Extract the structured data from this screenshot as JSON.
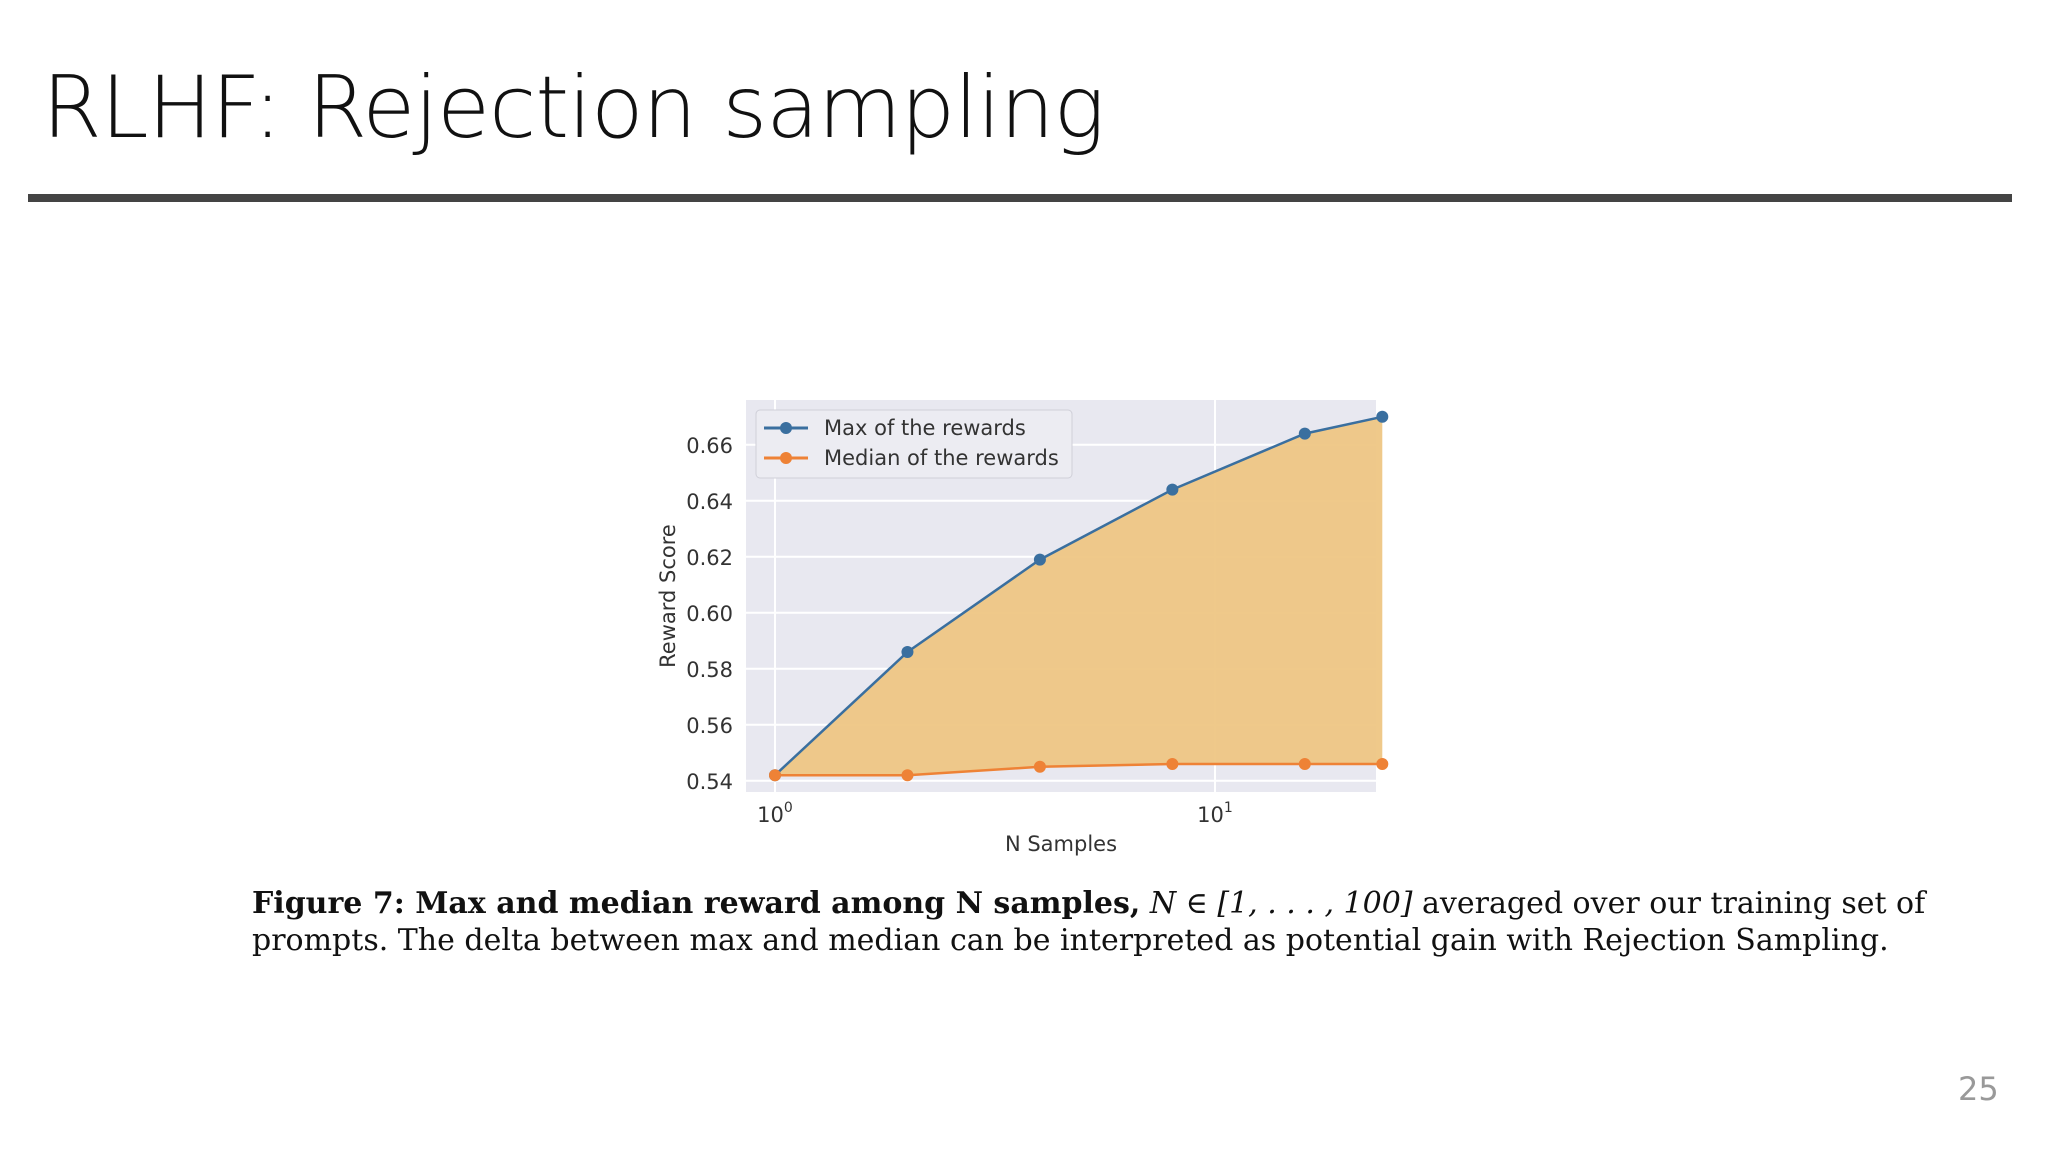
{
  "slide": {
    "title": "RLHF: Rejection sampling",
    "page_number": "25"
  },
  "caption": {
    "label": "Figure 7: Max and median reward among N samples,",
    "math": "N ∈ [1, . . . , 100]",
    "rest1": "averaged over our training set of",
    "line2": "prompts. The delta between max and median can be interpreted as potential gain with Rejection Sampling."
  },
  "colors": {
    "max": "#3a6f9f",
    "median": "#ee8236",
    "fill": "#eec684",
    "plot_bg": "#e8e8f0"
  },
  "chart_data": {
    "type": "line",
    "xlabel": "N Samples",
    "ylabel": "Reward Score",
    "x_scale": "log",
    "x": [
      1,
      2,
      4,
      8,
      16,
      24
    ],
    "x_ticks": [
      {
        "value": 1,
        "base": "10",
        "exp": "0"
      },
      {
        "value": 10,
        "base": "10",
        "exp": "1"
      }
    ],
    "y_ticks": [
      "0.54",
      "0.56",
      "0.58",
      "0.60",
      "0.62",
      "0.64",
      "0.66"
    ],
    "ylim": [
      0.536,
      0.676
    ],
    "series": [
      {
        "name": "Max of the rewards",
        "values": [
          0.542,
          0.586,
          0.619,
          0.644,
          0.664,
          0.67
        ]
      },
      {
        "name": "Median of the rewards",
        "values": [
          0.542,
          0.542,
          0.545,
          0.546,
          0.546,
          0.546
        ]
      }
    ],
    "fill_between": true,
    "grid": true,
    "legend": "top-left"
  }
}
